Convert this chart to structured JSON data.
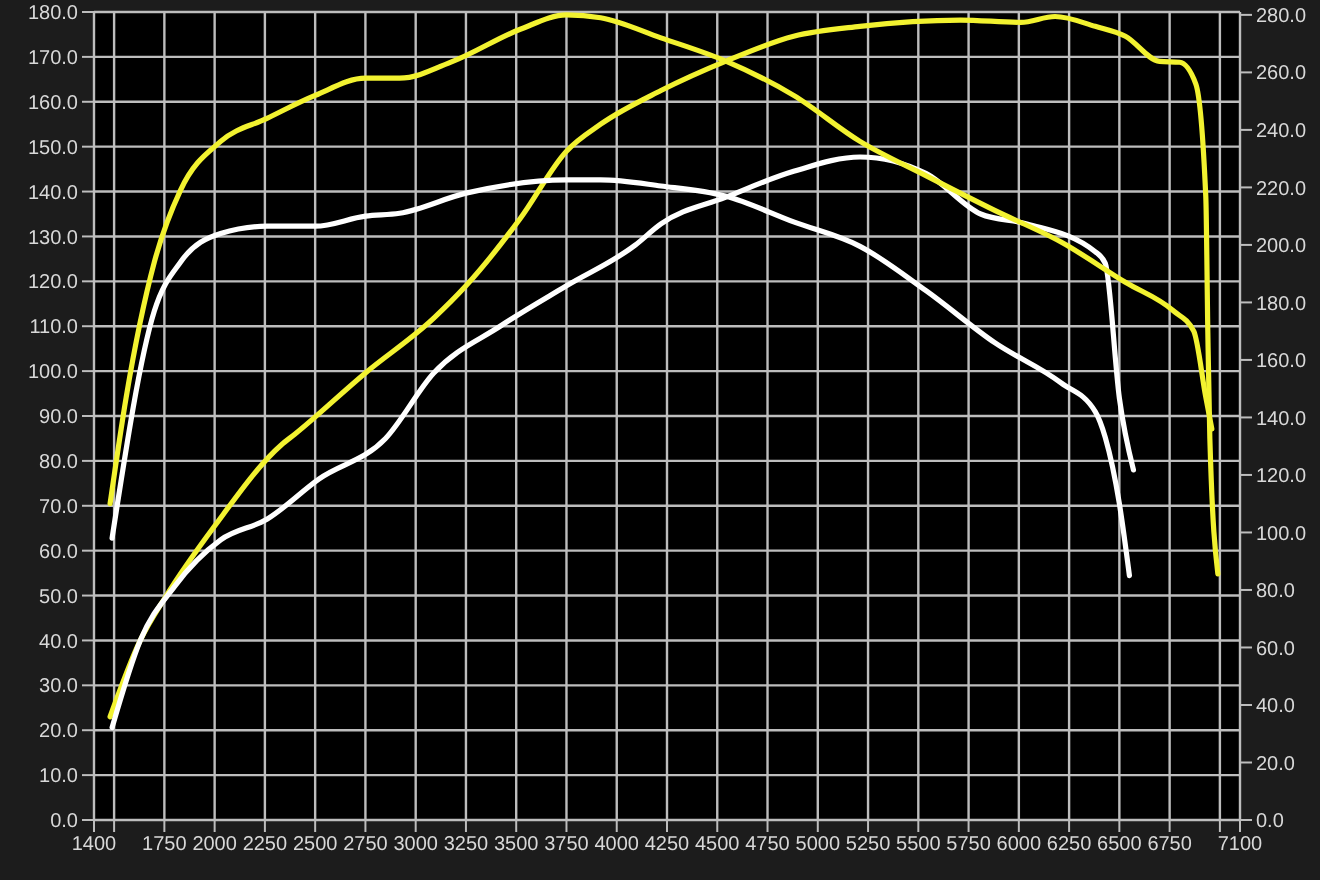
{
  "chart_data": {
    "type": "line",
    "grid": true,
    "xlim": [
      1400,
      7100
    ],
    "xticks": [
      1400,
      {
        "value": 1500,
        "label": null
      },
      1750,
      2000,
      2250,
      2500,
      2750,
      3000,
      3250,
      3500,
      3750,
      4000,
      4250,
      4500,
      4750,
      5000,
      5250,
      5500,
      5750,
      6000,
      6250,
      6500,
      6750,
      {
        "value": 7000,
        "label": null
      },
      7100
    ],
    "ylim": [
      0,
      180
    ],
    "yticks": [
      {
        "value": 0,
        "label": "0.0"
      },
      {
        "value": 10,
        "label": "10.0"
      },
      {
        "value": 20,
        "label": "20.0"
      },
      {
        "value": 30,
        "label": "30.0"
      },
      {
        "value": 40,
        "label": "40.0"
      },
      {
        "value": 50,
        "label": "50.0"
      },
      {
        "value": 60,
        "label": "60.0"
      },
      {
        "value": 70,
        "label": "70.0"
      },
      {
        "value": 80,
        "label": "80.0"
      },
      {
        "value": 90,
        "label": "90.0"
      },
      {
        "value": 100,
        "label": "100.0"
      },
      {
        "value": 110,
        "label": "110.0"
      },
      {
        "value": 120,
        "label": "120.0"
      },
      {
        "value": 130,
        "label": "130.0"
      },
      {
        "value": 140,
        "label": "140.0"
      },
      {
        "value": 150,
        "label": "150.0"
      },
      {
        "value": 160,
        "label": "160.0"
      },
      {
        "value": 170,
        "label": "170.0"
      },
      {
        "value": 180,
        "label": "180.0"
      }
    ],
    "y2lim": [
      0,
      281
    ],
    "y2ticks": [
      {
        "value": 0,
        "label": "0.0"
      },
      {
        "value": 20,
        "label": "20.0"
      },
      {
        "value": 40,
        "label": "40.0"
      },
      {
        "value": 60,
        "label": "60.0"
      },
      {
        "value": 80,
        "label": "80.0"
      },
      {
        "value": 100,
        "label": "100.0"
      },
      {
        "value": 120,
        "label": "120.0"
      },
      {
        "value": 140,
        "label": "140.0"
      },
      {
        "value": 160,
        "label": "160.0"
      },
      {
        "value": 180,
        "label": "180.0"
      },
      {
        "value": 200,
        "label": "200.0"
      },
      {
        "value": 220,
        "label": "220.0"
      },
      {
        "value": 240,
        "label": "240.0"
      },
      {
        "value": 260,
        "label": "260.0"
      },
      {
        "value": 280,
        "label": "280.0"
      }
    ],
    "series": [
      {
        "color": "#f2f230",
        "axis": "y",
        "x": [
          1480,
          1630,
          1760,
          2000,
          2330,
          2400,
          2750,
          3090,
          3250,
          3520,
          3750,
          3920,
          4220,
          4540,
          4880,
          5210,
          5710,
          6010,
          6180,
          6380,
          6530,
          6700,
          6800,
          6880,
          6930,
          6940,
          6950,
          6990
        ],
        "values": [
          23,
          40,
          50,
          65.5,
          83.5,
          86,
          99.6,
          111.8,
          119,
          134,
          149,
          155,
          162.5,
          169,
          174.6,
          176.8,
          178.2,
          177.7,
          179,
          176.8,
          174.6,
          169,
          168.8,
          164,
          138.7,
          108.6,
          85,
          54.8
        ]
      },
      {
        "color": "#ffffff",
        "axis": "y",
        "x": [
          1490,
          1630,
          1800,
          2030,
          2260,
          2520,
          2850,
          3090,
          3420,
          3750,
          4090,
          4220,
          4540,
          4880,
          5210,
          5540,
          5810,
          6040,
          6380,
          6430,
          6500,
          6570
        ],
        "values": [
          20.6,
          40,
          52,
          62.4,
          67,
          76,
          85,
          99.6,
          110,
          119,
          128,
          132.8,
          138.7,
          144.5,
          147.7,
          144,
          135,
          132.8,
          126.6,
          124,
          94,
          78
        ]
      },
      {
        "color": "#f2f230",
        "axis": "y2",
        "x": [
          1480,
          1560,
          1700,
          1830,
          2030,
          2260,
          2500,
          2750,
          2920,
          3190,
          3520,
          3750,
          3920,
          4220,
          4540,
          4880,
          5210,
          5540,
          5880,
          6210,
          6530,
          6770,
          6870,
          6930,
          6960
        ],
        "values": [
          110,
          147,
          194,
          219,
          236,
          244,
          252,
          258,
          258,
          264,
          275,
          280,
          279,
          272,
          264,
          252,
          236,
          224,
          212,
          201,
          187,
          177,
          170,
          147,
          136
        ]
      },
      {
        "color": "#ffffff",
        "axis": "y2",
        "x": [
          1490,
          1700,
          1830,
          2030,
          2260,
          2500,
          2750,
          2920,
          3250,
          3750,
          3920,
          4220,
          4540,
          4880,
          5210,
          5540,
          5880,
          6210,
          6380,
          6430,
          6500,
          6550
        ],
        "values": [
          98,
          177,
          194,
          204,
          206.5,
          206.5,
          210,
          211,
          218,
          222.6,
          222.6,
          220.5,
          217,
          208,
          199.5,
          184,
          166,
          152,
          142,
          133,
          110,
          85
        ]
      }
    ]
  }
}
